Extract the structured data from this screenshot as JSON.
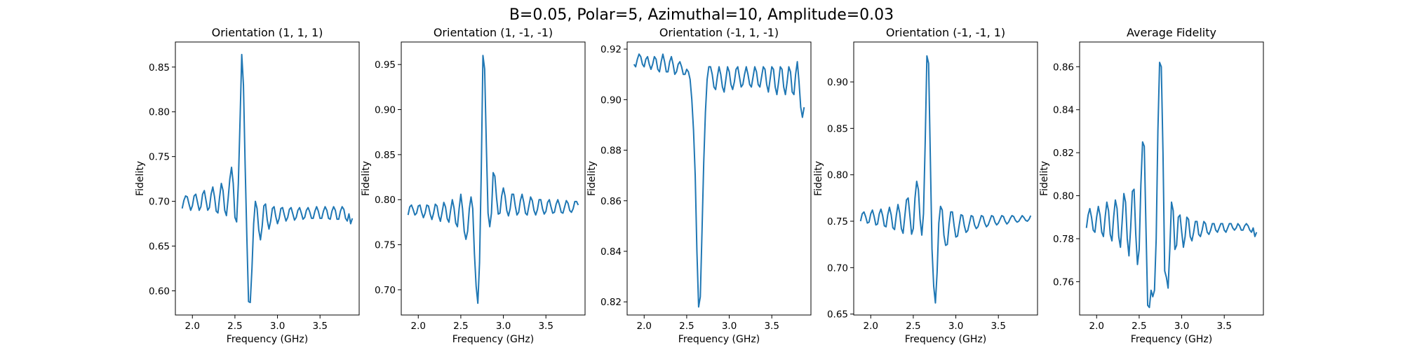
{
  "figure": {
    "suptitle": "B=0.05, Polar=5, Azimuthal=10, Amplitude=0.03"
  },
  "style": {
    "line_color": "#1f77b4",
    "axes_color": "#000000",
    "background": "#ffffff"
  },
  "chart_data": [
    {
      "type": "line",
      "title": "Orientation (1, 1, 1)",
      "xlabel": "Frequency (GHz)",
      "ylabel": "Fidelity",
      "xlim": [
        1.8,
        3.96
      ],
      "ylim": [
        0.573,
        0.878
      ],
      "xticks": [
        "2.0",
        "2.5",
        "3.0",
        "3.5"
      ],
      "yticks": [
        "0.60",
        "0.65",
        "0.70",
        "0.75",
        "0.80",
        "0.85"
      ],
      "grid": false,
      "x": [
        1.88,
        1.9,
        1.92,
        1.94,
        1.96,
        1.98,
        2.0,
        2.02,
        2.04,
        2.06,
        2.08,
        2.1,
        2.12,
        2.14,
        2.16,
        2.18,
        2.2,
        2.22,
        2.24,
        2.26,
        2.28,
        2.3,
        2.32,
        2.34,
        2.36,
        2.38,
        2.4,
        2.42,
        2.44,
        2.46,
        2.48,
        2.5,
        2.52,
        2.54,
        2.56,
        2.58,
        2.6,
        2.62,
        2.64,
        2.66,
        2.68,
        2.7,
        2.72,
        2.74,
        2.76,
        2.78,
        2.8,
        2.82,
        2.84,
        2.86,
        2.88,
        2.9,
        2.92,
        2.94,
        2.96,
        2.98,
        3.0,
        3.02,
        3.04,
        3.06,
        3.08,
        3.1,
        3.12,
        3.14,
        3.16,
        3.18,
        3.2,
        3.22,
        3.24,
        3.26,
        3.28,
        3.3,
        3.32,
        3.34,
        3.36,
        3.38,
        3.4,
        3.42,
        3.44,
        3.46,
        3.48,
        3.5,
        3.52,
        3.54,
        3.56,
        3.58,
        3.6,
        3.62,
        3.64,
        3.66,
        3.68,
        3.7,
        3.72,
        3.74,
        3.76,
        3.78,
        3.8,
        3.82,
        3.84,
        3.86,
        3.88
      ],
      "y": [
        0.692,
        0.701,
        0.706,
        0.705,
        0.697,
        0.69,
        0.695,
        0.706,
        0.708,
        0.699,
        0.69,
        0.694,
        0.708,
        0.712,
        0.701,
        0.69,
        0.693,
        0.708,
        0.716,
        0.705,
        0.689,
        0.687,
        0.705,
        0.72,
        0.712,
        0.69,
        0.684,
        0.703,
        0.725,
        0.738,
        0.72,
        0.682,
        0.677,
        0.72,
        0.79,
        0.864,
        0.83,
        0.74,
        0.66,
        0.588,
        0.587,
        0.625,
        0.675,
        0.7,
        0.692,
        0.668,
        0.657,
        0.672,
        0.695,
        0.697,
        0.679,
        0.669,
        0.678,
        0.692,
        0.694,
        0.683,
        0.675,
        0.681,
        0.692,
        0.693,
        0.685,
        0.678,
        0.682,
        0.691,
        0.693,
        0.686,
        0.679,
        0.682,
        0.69,
        0.693,
        0.687,
        0.68,
        0.682,
        0.69,
        0.693,
        0.688,
        0.681,
        0.681,
        0.689,
        0.694,
        0.689,
        0.681,
        0.681,
        0.689,
        0.694,
        0.69,
        0.681,
        0.68,
        0.689,
        0.694,
        0.69,
        0.68,
        0.68,
        0.689,
        0.694,
        0.691,
        0.681,
        0.678,
        0.686,
        0.675,
        0.681
      ]
    },
    {
      "type": "line",
      "title": "Orientation (1, -1, -1)",
      "xlabel": "Frequency (GHz)",
      "ylabel": "Fidelity",
      "xlim": [
        1.8,
        3.96
      ],
      "ylim": [
        0.672,
        0.975
      ],
      "xticks": [
        "2.0",
        "2.5",
        "3.0",
        "3.5"
      ],
      "yticks": [
        "0.70",
        "0.75",
        "0.80",
        "0.85",
        "0.90",
        "0.95"
      ],
      "grid": false,
      "x": [
        1.88,
        1.9,
        1.92,
        1.94,
        1.96,
        1.98,
        2.0,
        2.02,
        2.04,
        2.06,
        2.08,
        2.1,
        2.12,
        2.14,
        2.16,
        2.18,
        2.2,
        2.22,
        2.24,
        2.26,
        2.28,
        2.3,
        2.32,
        2.34,
        2.36,
        2.38,
        2.4,
        2.42,
        2.44,
        2.46,
        2.48,
        2.5,
        2.52,
        2.54,
        2.56,
        2.58,
        2.6,
        2.62,
        2.64,
        2.66,
        2.68,
        2.7,
        2.72,
        2.74,
        2.76,
        2.78,
        2.8,
        2.82,
        2.84,
        2.86,
        2.88,
        2.9,
        2.92,
        2.94,
        2.96,
        2.98,
        3.0,
        3.02,
        3.04,
        3.06,
        3.08,
        3.1,
        3.12,
        3.14,
        3.16,
        3.18,
        3.2,
        3.22,
        3.24,
        3.26,
        3.28,
        3.3,
        3.32,
        3.34,
        3.36,
        3.38,
        3.4,
        3.42,
        3.44,
        3.46,
        3.48,
        3.5,
        3.52,
        3.54,
        3.56,
        3.58,
        3.6,
        3.62,
        3.64,
        3.66,
        3.68,
        3.7,
        3.72,
        3.74,
        3.76,
        3.78,
        3.8,
        3.82,
        3.84,
        3.86,
        3.88
      ],
      "y": [
        0.783,
        0.792,
        0.794,
        0.789,
        0.783,
        0.785,
        0.793,
        0.794,
        0.786,
        0.78,
        0.785,
        0.794,
        0.793,
        0.784,
        0.778,
        0.785,
        0.795,
        0.793,
        0.782,
        0.776,
        0.786,
        0.797,
        0.792,
        0.779,
        0.775,
        0.788,
        0.8,
        0.791,
        0.774,
        0.77,
        0.79,
        0.806,
        0.79,
        0.765,
        0.756,
        0.765,
        0.79,
        0.803,
        0.79,
        0.74,
        0.704,
        0.685,
        0.73,
        0.83,
        0.96,
        0.945,
        0.86,
        0.785,
        0.77,
        0.785,
        0.83,
        0.826,
        0.802,
        0.784,
        0.785,
        0.804,
        0.813,
        0.804,
        0.788,
        0.782,
        0.79,
        0.806,
        0.806,
        0.793,
        0.783,
        0.786,
        0.799,
        0.806,
        0.797,
        0.785,
        0.783,
        0.793,
        0.803,
        0.799,
        0.788,
        0.783,
        0.789,
        0.8,
        0.8,
        0.79,
        0.784,
        0.787,
        0.797,
        0.8,
        0.792,
        0.785,
        0.786,
        0.795,
        0.8,
        0.794,
        0.786,
        0.785,
        0.792,
        0.799,
        0.796,
        0.788,
        0.786,
        0.79,
        0.798,
        0.798,
        0.794
      ]
    },
    {
      "type": "line",
      "title": "Orientation (-1, 1, -1)",
      "xlabel": "Frequency (GHz)",
      "ylabel": "Fidelity",
      "xlim": [
        1.8,
        3.96
      ],
      "ylim": [
        0.8148,
        0.9228
      ],
      "xticks": [
        "2.0",
        "2.5",
        "3.0",
        "3.5"
      ],
      "yticks": [
        "0.82",
        "0.84",
        "0.86",
        "0.88",
        "0.90",
        "0.92"
      ],
      "grid": false,
      "x": [
        1.88,
        1.9,
        1.92,
        1.94,
        1.96,
        1.98,
        2.0,
        2.02,
        2.04,
        2.06,
        2.08,
        2.1,
        2.12,
        2.14,
        2.16,
        2.18,
        2.2,
        2.22,
        2.24,
        2.26,
        2.28,
        2.3,
        2.32,
        2.34,
        2.36,
        2.38,
        2.4,
        2.42,
        2.44,
        2.46,
        2.48,
        2.5,
        2.52,
        2.54,
        2.56,
        2.58,
        2.6,
        2.62,
        2.64,
        2.66,
        2.68,
        2.7,
        2.72,
        2.74,
        2.76,
        2.78,
        2.8,
        2.82,
        2.84,
        2.86,
        2.88,
        2.9,
        2.92,
        2.94,
        2.96,
        2.98,
        3.0,
        3.02,
        3.04,
        3.06,
        3.08,
        3.1,
        3.12,
        3.14,
        3.16,
        3.18,
        3.2,
        3.22,
        3.24,
        3.26,
        3.28,
        3.3,
        3.32,
        3.34,
        3.36,
        3.38,
        3.4,
        3.42,
        3.44,
        3.46,
        3.48,
        3.5,
        3.52,
        3.54,
        3.56,
        3.58,
        3.6,
        3.62,
        3.64,
        3.66,
        3.68,
        3.7,
        3.72,
        3.74,
        3.76,
        3.78,
        3.8,
        3.82,
        3.84,
        3.86,
        3.88
      ],
      "y": [
        0.914,
        0.913,
        0.916,
        0.918,
        0.917,
        0.914,
        0.913,
        0.916,
        0.917,
        0.914,
        0.912,
        0.914,
        0.917,
        0.916,
        0.912,
        0.911,
        0.915,
        0.918,
        0.915,
        0.911,
        0.911,
        0.915,
        0.917,
        0.914,
        0.91,
        0.911,
        0.914,
        0.915,
        0.913,
        0.91,
        0.91,
        0.912,
        0.911,
        0.908,
        0.9,
        0.888,
        0.87,
        0.84,
        0.818,
        0.822,
        0.848,
        0.875,
        0.895,
        0.908,
        0.913,
        0.913,
        0.91,
        0.905,
        0.904,
        0.909,
        0.913,
        0.91,
        0.905,
        0.903,
        0.908,
        0.913,
        0.911,
        0.906,
        0.904,
        0.907,
        0.912,
        0.913,
        0.909,
        0.905,
        0.906,
        0.91,
        0.913,
        0.91,
        0.906,
        0.905,
        0.909,
        0.913,
        0.911,
        0.906,
        0.905,
        0.909,
        0.913,
        0.912,
        0.906,
        0.903,
        0.908,
        0.913,
        0.912,
        0.905,
        0.902,
        0.907,
        0.913,
        0.912,
        0.905,
        0.902,
        0.907,
        0.913,
        0.911,
        0.903,
        0.902,
        0.91,
        0.915,
        0.907,
        0.897,
        0.893,
        0.897
      ]
    },
    {
      "type": "line",
      "title": "Orientation (-1, -1, 1)",
      "xlabel": "Frequency (GHz)",
      "ylabel": "Fidelity",
      "xlim": [
        1.8,
        3.96
      ],
      "ylim": [
        0.649,
        0.943
      ],
      "xticks": [
        "2.0",
        "2.5",
        "3.0",
        "3.5"
      ],
      "yticks": [
        "0.65",
        "0.70",
        "0.75",
        "0.80",
        "0.85",
        "0.90"
      ],
      "grid": false,
      "x": [
        1.88,
        1.9,
        1.92,
        1.94,
        1.96,
        1.98,
        2.0,
        2.02,
        2.04,
        2.06,
        2.08,
        2.1,
        2.12,
        2.14,
        2.16,
        2.18,
        2.2,
        2.22,
        2.24,
        2.26,
        2.28,
        2.3,
        2.32,
        2.34,
        2.36,
        2.38,
        2.4,
        2.42,
        2.44,
        2.46,
        2.48,
        2.5,
        2.52,
        2.54,
        2.56,
        2.58,
        2.6,
        2.62,
        2.64,
        2.66,
        2.68,
        2.7,
        2.72,
        2.74,
        2.76,
        2.78,
        2.8,
        2.82,
        2.84,
        2.86,
        2.88,
        2.9,
        2.92,
        2.94,
        2.96,
        2.98,
        3.0,
        3.02,
        3.04,
        3.06,
        3.08,
        3.1,
        3.12,
        3.14,
        3.16,
        3.18,
        3.2,
        3.22,
        3.24,
        3.26,
        3.28,
        3.3,
        3.32,
        3.34,
        3.36,
        3.38,
        3.4,
        3.42,
        3.44,
        3.46,
        3.48,
        3.5,
        3.52,
        3.54,
        3.56,
        3.58,
        3.6,
        3.62,
        3.64,
        3.66,
        3.68,
        3.7,
        3.72,
        3.74,
        3.76,
        3.78,
        3.8,
        3.82,
        3.84,
        3.86,
        3.88
      ],
      "y": [
        0.75,
        0.758,
        0.76,
        0.755,
        0.748,
        0.749,
        0.758,
        0.762,
        0.755,
        0.746,
        0.747,
        0.758,
        0.763,
        0.756,
        0.745,
        0.744,
        0.757,
        0.765,
        0.757,
        0.743,
        0.741,
        0.756,
        0.768,
        0.759,
        0.742,
        0.737,
        0.755,
        0.773,
        0.775,
        0.756,
        0.736,
        0.742,
        0.775,
        0.793,
        0.784,
        0.752,
        0.735,
        0.758,
        0.835,
        0.928,
        0.92,
        0.82,
        0.72,
        0.68,
        0.662,
        0.695,
        0.748,
        0.766,
        0.762,
        0.735,
        0.724,
        0.725,
        0.745,
        0.76,
        0.76,
        0.745,
        0.733,
        0.734,
        0.746,
        0.757,
        0.756,
        0.745,
        0.738,
        0.74,
        0.748,
        0.756,
        0.755,
        0.746,
        0.742,
        0.744,
        0.75,
        0.756,
        0.755,
        0.748,
        0.744,
        0.746,
        0.751,
        0.756,
        0.755,
        0.749,
        0.746,
        0.748,
        0.752,
        0.756,
        0.755,
        0.75,
        0.747,
        0.749,
        0.753,
        0.756,
        0.755,
        0.751,
        0.749,
        0.75,
        0.753,
        0.756,
        0.754,
        0.751,
        0.75,
        0.752,
        0.756
      ]
    },
    {
      "type": "line",
      "title": "Average Fidelity",
      "xlabel": "Frequency (GHz)",
      "ylabel": "Fidelity",
      "xlim": [
        1.8,
        3.96
      ],
      "ylim": [
        0.7445,
        0.8715
      ],
      "xticks": [
        "2.0",
        "2.5",
        "3.0",
        "3.5"
      ],
      "yticks": [
        "0.76",
        "0.78",
        "0.80",
        "0.82",
        "0.84",
        "0.86"
      ],
      "grid": false,
      "x": [
        1.88,
        1.9,
        1.92,
        1.94,
        1.96,
        1.98,
        2.0,
        2.02,
        2.04,
        2.06,
        2.08,
        2.1,
        2.12,
        2.14,
        2.16,
        2.18,
        2.2,
        2.22,
        2.24,
        2.26,
        2.28,
        2.3,
        2.32,
        2.34,
        2.36,
        2.38,
        2.4,
        2.42,
        2.44,
        2.46,
        2.48,
        2.5,
        2.52,
        2.54,
        2.56,
        2.58,
        2.6,
        2.62,
        2.64,
        2.66,
        2.68,
        2.7,
        2.72,
        2.74,
        2.76,
        2.78,
        2.8,
        2.82,
        2.84,
        2.86,
        2.88,
        2.9,
        2.92,
        2.94,
        2.96,
        2.98,
        3.0,
        3.02,
        3.04,
        3.06,
        3.08,
        3.1,
        3.12,
        3.14,
        3.16,
        3.18,
        3.2,
        3.22,
        3.24,
        3.26,
        3.28,
        3.3,
        3.32,
        3.34,
        3.36,
        3.38,
        3.4,
        3.42,
        3.44,
        3.46,
        3.48,
        3.5,
        3.52,
        3.54,
        3.56,
        3.58,
        3.6,
        3.62,
        3.64,
        3.66,
        3.68,
        3.7,
        3.72,
        3.74,
        3.76,
        3.78,
        3.8,
        3.82,
        3.84,
        3.86,
        3.88
      ],
      "y": [
        0.785,
        0.791,
        0.794,
        0.79,
        0.784,
        0.783,
        0.79,
        0.795,
        0.791,
        0.783,
        0.781,
        0.79,
        0.797,
        0.793,
        0.782,
        0.779,
        0.79,
        0.798,
        0.794,
        0.781,
        0.776,
        0.788,
        0.801,
        0.797,
        0.78,
        0.772,
        0.785,
        0.802,
        0.803,
        0.782,
        0.768,
        0.775,
        0.805,
        0.825,
        0.823,
        0.785,
        0.749,
        0.748,
        0.756,
        0.753,
        0.756,
        0.78,
        0.83,
        0.862,
        0.86,
        0.82,
        0.765,
        0.762,
        0.757,
        0.775,
        0.797,
        0.793,
        0.775,
        0.777,
        0.79,
        0.791,
        0.783,
        0.776,
        0.781,
        0.79,
        0.789,
        0.781,
        0.779,
        0.783,
        0.788,
        0.788,
        0.782,
        0.781,
        0.784,
        0.788,
        0.787,
        0.783,
        0.782,
        0.784,
        0.787,
        0.787,
        0.784,
        0.783,
        0.785,
        0.787,
        0.787,
        0.784,
        0.783,
        0.785,
        0.787,
        0.787,
        0.785,
        0.784,
        0.785,
        0.787,
        0.786,
        0.784,
        0.784,
        0.786,
        0.787,
        0.786,
        0.784,
        0.783,
        0.785,
        0.781,
        0.783
      ]
    }
  ]
}
